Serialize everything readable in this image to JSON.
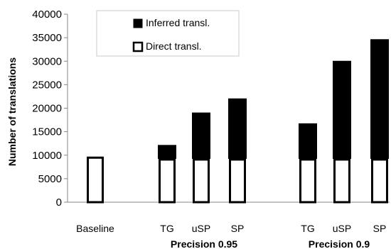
{
  "chart_data": {
    "type": "bar",
    "stacked": true,
    "ylabel": "Number of translations",
    "ylim": [
      0,
      40000
    ],
    "yticks": [
      0,
      5000,
      10000,
      15000,
      20000,
      25000,
      30000,
      35000,
      40000
    ],
    "grid": false,
    "legend_position": "top-center",
    "categories": [
      "Baseline",
      "TG",
      "uSP",
      "SP",
      "TG",
      "uSP",
      "SP"
    ],
    "groups": [
      {
        "label": "Precision 0.95",
        "categories": [
          "TG",
          "uSP",
          "SP"
        ]
      },
      {
        "label": "Precision 0.9",
        "categories": [
          "TG",
          "uSP",
          "SP"
        ]
      }
    ],
    "series": [
      {
        "name": "Direct transl.",
        "color": "#ffffff",
        "values": [
          9700,
          9300,
          9300,
          9300,
          9300,
          9300,
          9300
        ]
      },
      {
        "name": "Inferred transl.",
        "color": "#000000",
        "values": [
          0,
          2800,
          9700,
          12700,
          7400,
          20700,
          25300
        ]
      }
    ],
    "totals": [
      9700,
      12100,
      19000,
      22000,
      16700,
      30000,
      34600
    ]
  }
}
